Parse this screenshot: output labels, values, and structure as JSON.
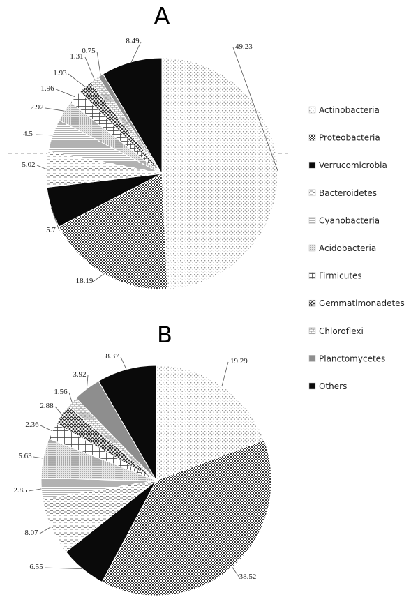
{
  "chart_data": [
    {
      "type": "pie",
      "title": "A",
      "categories": [
        "Actinobacteria",
        "Proteobacteria",
        "Verrucomicrobia",
        "Bacteroidetes",
        "Cyanobacteria",
        "Acidobacteria",
        "Firmicutes",
        "Gemmatimonadetes",
        "Chloroflexi",
        "Planctomycetes",
        "Others"
      ],
      "values": [
        49.23,
        18.19,
        5.7,
        5.02,
        4.5,
        2.92,
        1.96,
        1.93,
        1.31,
        0.75,
        8.49
      ],
      "value_labels": [
        "49.23",
        "18.19",
        "5.7",
        "5.02",
        "4.5",
        "2.92",
        "1.96",
        "1.93",
        "1.31",
        "0.75",
        "8.49"
      ]
    },
    {
      "type": "pie",
      "title": "B",
      "categories": [
        "Actinobacteria",
        "Proteobacteria",
        "Verrucomicrobia",
        "Bacteroidetes",
        "Cyanobacteria",
        "Acidobacteria",
        "Firmicutes",
        "Gemmatimonadetes",
        "Chloroflexi",
        "Planctomycetes",
        "Others"
      ],
      "values": [
        19.29,
        38.52,
        6.55,
        8.07,
        2.85,
        5.63,
        2.36,
        2.88,
        1.56,
        3.92,
        8.37
      ],
      "value_labels": [
        "19.29",
        "38.52",
        "6.55",
        "8.07",
        "2.85",
        "5.63",
        "2.36",
        "2.88",
        "1.56",
        "3.92",
        "8.37"
      ]
    }
  ],
  "legend": {
    "placement": "right",
    "items": [
      {
        "label": "Actinobacteria",
        "pattern": "dots-light"
      },
      {
        "label": "Proteobacteria",
        "pattern": "checker"
      },
      {
        "label": "Verrucomicrobia",
        "pattern": "solid-black"
      },
      {
        "label": "Bacteroidetes",
        "pattern": "dashes"
      },
      {
        "label": "Cyanobacteria",
        "pattern": "horizontal-lines"
      },
      {
        "label": "Acidobacteria",
        "pattern": "dense-dots"
      },
      {
        "label": "Firmicutes",
        "pattern": "grid"
      },
      {
        "label": "Gemmatimonadetes",
        "pattern": "crosshatch"
      },
      {
        "label": "Chloroflexi",
        "pattern": "brick"
      },
      {
        "label": "Planctomycetes",
        "pattern": "solid-gray"
      },
      {
        "label": "Others",
        "pattern": "solid-black"
      }
    ]
  }
}
